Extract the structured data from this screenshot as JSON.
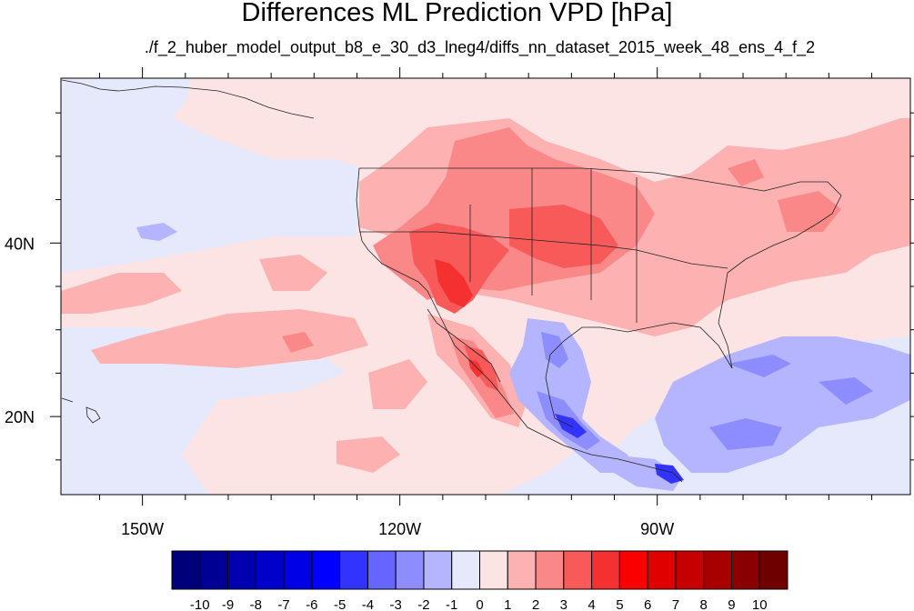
{
  "title": "Differences ML Prediction VPD [hPa]",
  "subtitle": "./f_2_huber_model_output_b8_e_30_d3_lneg4/diffs_nn_dataset_2015_week_48_ens_4_f_2",
  "map": {
    "projection": "cylindrical-equidistant",
    "lon_range": [
      -159.5,
      -60.5
    ],
    "lat_range": [
      11,
      59
    ],
    "lon_tick_labels": [
      {
        "lon": -150,
        "label": "150W"
      },
      {
        "lon": -120,
        "label": "120W"
      },
      {
        "lon": -90,
        "label": "90W"
      }
    ],
    "lat_tick_labels": [
      {
        "lat": 40,
        "label": "40N"
      },
      {
        "lat": 20,
        "label": "20N"
      }
    ],
    "minor_lon_ticks": [
      -155,
      -145,
      -140,
      -135,
      -130,
      -125,
      -115,
      -110,
      -105,
      -100,
      -95,
      -85,
      -80,
      -75,
      -70,
      -65
    ],
    "minor_lat_ticks": [
      15,
      25,
      30,
      35,
      45,
      50,
      55
    ],
    "field": "VPD difference",
    "units": "hPa"
  },
  "colorbar": {
    "levels": [
      "-10",
      "-9",
      "-8",
      "-7",
      "-6",
      "-5",
      "-4",
      "-3",
      "-2",
      "-1",
      "0",
      "1",
      "2",
      "3",
      "4",
      "5",
      "6",
      "7",
      "8",
      "9",
      "10"
    ],
    "colors": [
      "#00007a",
      "#000095",
      "#0000b0",
      "#0000cb",
      "#0000e6",
      "#0000ff",
      "#3333ff",
      "#6666ff",
      "#8d8dff",
      "#b4b4ff",
      "#e6e8fb",
      "#fde4e4",
      "#fdb1b1",
      "#fb8888",
      "#f85a5a",
      "#f53030",
      "#fa0000",
      "#e10000",
      "#c60000",
      "#a80000",
      "#8a0000",
      "#6e0000"
    ]
  }
}
